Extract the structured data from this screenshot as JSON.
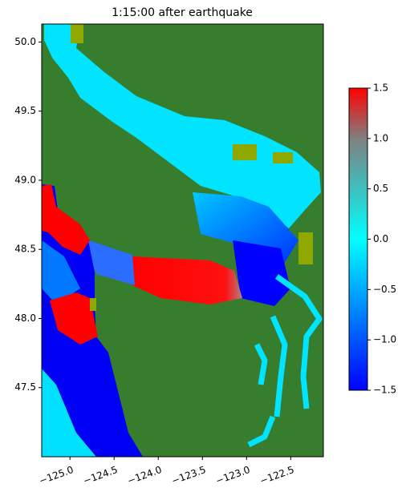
{
  "chart_data": {
    "type": "map",
    "title": "1:15:00 after earthquake",
    "xlim": [
      -125.32,
      -122.13
    ],
    "ylim": [
      47.0,
      50.13
    ],
    "xticks": [
      {
        "value": -125.0,
        "label": "−125.0"
      },
      {
        "value": -124.5,
        "label": "−124.5"
      },
      {
        "value": -124.0,
        "label": "−124.0"
      },
      {
        "value": -123.5,
        "label": "−123.5"
      },
      {
        "value": -123.0,
        "label": "−123.0"
      },
      {
        "value": -122.5,
        "label": "−122.5"
      }
    ],
    "yticks": [
      47.5,
      {
        "value": 48.0,
        "label": "48.0"
      },
      48.5,
      {
        "value": 49.0,
        "label": "49.0"
      },
      49.5,
      {
        "value": 50.0,
        "label": "50.0"
      }
    ],
    "colorbar": {
      "lim": [
        -1.5,
        1.5
      ],
      "ticks": [
        1.5,
        {
          "value": 1.0,
          "label": "1.0"
        },
        0.5,
        {
          "value": 0.0,
          "label": "0.0"
        },
        {
          "value": -0.5,
          "label": "−0.5"
        },
        {
          "value": -1.0,
          "label": "−1.0"
        },
        {
          "value": -1.5,
          "label": "−1.5"
        }
      ],
      "colors": [
        "#0000ff",
        "#0055ff",
        "#00aaff",
        "#00ffff",
        "#40bfbf",
        "#808080",
        "#ff0000"
      ]
    }
  }
}
